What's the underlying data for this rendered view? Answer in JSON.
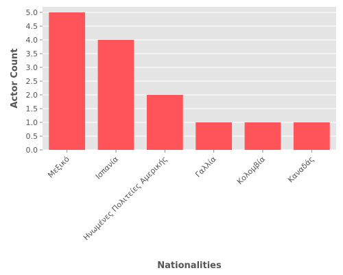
{
  "chart_data": {
    "type": "bar",
    "title": "",
    "xlabel": "Nationalities",
    "ylabel": "Actor Count",
    "categories": [
      "Μεξικό",
      "Ισπανία",
      "Ηνωμένες Πολιτείες Αμερικής",
      "Γαλλία",
      "Κολομβία",
      "Καναδάς"
    ],
    "values": [
      5,
      4,
      2,
      1,
      1,
      1
    ],
    "ylim": [
      0,
      5.2
    ],
    "yticks": [
      "0.0",
      "0.5",
      "1.0",
      "1.5",
      "2.0",
      "2.5",
      "3.0",
      "3.5",
      "4.0",
      "4.5",
      "5.0"
    ],
    "grid": true,
    "colors": {
      "bar": "#ff5459",
      "panel": "#e5e5e5",
      "grid": "#ffffff",
      "text": "#555555"
    }
  }
}
